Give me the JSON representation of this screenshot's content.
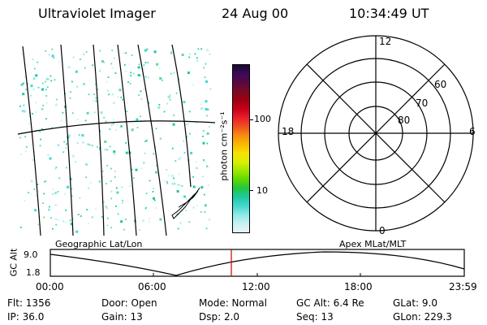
{
  "header": {
    "instrument": "Ultraviolet Imager",
    "date": "24 Aug 00",
    "time": "10:34:49  UT"
  },
  "colorbar": {
    "unit_label": "photon cm⁻²s⁻¹",
    "ticks": [
      "100",
      "10"
    ],
    "colors": [
      "#1a0a2e",
      "#3a0a5a",
      "#5a0840",
      "#7a0a20",
      "#a00010",
      "#c8001a",
      "#e8202a",
      "#f05020",
      "#f88c10",
      "#f8b800",
      "#f8e000",
      "#d8f000",
      "#a0e800",
      "#60d800",
      "#20c840",
      "#20c8a0",
      "#40d8d0",
      "#90e8e8",
      "#c8f0f0",
      "#e8f4f4"
    ]
  },
  "polar": {
    "radial_labels": [
      "60",
      "70",
      "80"
    ],
    "mlt_labels": {
      "top": "12",
      "bottom": "0",
      "left": "18",
      "right": "6"
    }
  },
  "timeline": {
    "axis_title": "GC Alt",
    "y_labels": [
      "9.0",
      "1.8"
    ],
    "left_caption": "Geographic Lat/Lon",
    "right_caption": "Apex MLat/MLT",
    "x_ticks": [
      "00:00",
      "06:00",
      "12:00",
      "18:00",
      "23:59"
    ],
    "marker_color": "#cc0000"
  },
  "info": {
    "flt": "Flt: 1356",
    "door": "Door: Open",
    "mode": "Mode: Normal",
    "gcalt": "GC Alt: 6.4 Re",
    "glat": "GLat:   9.0",
    "ip": "IP: 36.0",
    "gain": "Gain: 13",
    "dsp": "Dsp:    2.0",
    "seq": "Seq: 13",
    "glon": "GLon: 229.3"
  }
}
